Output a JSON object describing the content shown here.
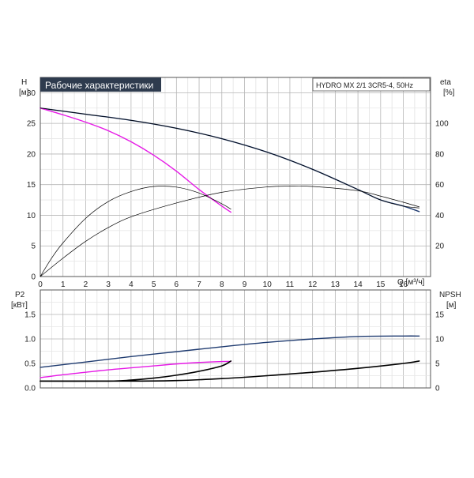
{
  "chart_data": [
    {
      "type": "line",
      "title": "Рабочие характеристики",
      "product_label": "HYDRO MX 2/1 3CR5-4, 50Hz",
      "xlabel": "Q [м³/ч]",
      "ylabel_left_name": "H",
      "ylabel_left_unit": "[м]",
      "ylabel_right_name": "eta",
      "ylabel_right_unit": "[%]",
      "xlim": [
        0,
        17.2
      ],
      "ylim_left": [
        0,
        32.5
      ],
      "ylim_right": [
        0,
        130
      ],
      "x_ticks": [
        0,
        1,
        2,
        3,
        4,
        5,
        6,
        7,
        8,
        9,
        10,
        11,
        12,
        13,
        14,
        15,
        16
      ],
      "x_tick_labels": [
        "0",
        "1",
        "2",
        "3",
        "4",
        "5",
        "6",
        "7",
        "8",
        "9",
        "10",
        "11",
        "12",
        "13",
        "14",
        "15",
        "16"
      ],
      "y_left_ticks": [
        0,
        5,
        10,
        15,
        20,
        25,
        30
      ],
      "y_left_tick_labels": [
        "0",
        "5",
        "10",
        "15",
        "20",
        "25",
        "30"
      ],
      "y_right_ticks": [
        20,
        40,
        60,
        80,
        100
      ],
      "y_right_tick_labels": [
        "20",
        "40",
        "60",
        "80",
        "100"
      ],
      "grid": true,
      "series": [
        {
          "role": "head",
          "axis": "left",
          "color": "#1f3b70",
          "x": [
            0,
            2,
            4,
            6,
            8,
            10,
            12,
            14,
            15,
            16,
            16.7
          ],
          "y": [
            27.5,
            26.5,
            25.5,
            24.2,
            22.5,
            20.3,
            17.5,
            14.2,
            12.5,
            11.5,
            10.6
          ]
        },
        {
          "role": "head",
          "axis": "left",
          "color": "#e619e6",
          "x": [
            0,
            1,
            2,
            3,
            4,
            5,
            6,
            7,
            8,
            8.4
          ],
          "y": [
            27.5,
            26.4,
            25.2,
            23.8,
            22.0,
            19.8,
            17.2,
            14.2,
            11.5,
            10.5
          ]
        },
        {
          "role": "head",
          "axis": "left",
          "color": "#000000",
          "x": [
            0,
            2,
            4,
            6,
            8,
            10,
            12,
            14,
            15,
            16,
            16.7
          ],
          "y": [
            27.5,
            26.5,
            25.5,
            24.2,
            22.5,
            20.3,
            17.5,
            14.2,
            12.5,
            11.5,
            11.2
          ]
        },
        {
          "role": "eta",
          "axis": "right",
          "color": "#000000",
          "x": [
            0,
            0.5,
            1,
            2,
            3,
            4,
            5,
            6,
            7,
            8,
            8.4
          ],
          "y": [
            0,
            12,
            22,
            38,
            49,
            55.5,
            58.8,
            58.4,
            54.5,
            47.5,
            44
          ]
        },
        {
          "role": "eta",
          "axis": "right",
          "color": "#000000",
          "x": [
            0,
            1,
            2,
            3,
            4,
            6,
            8,
            10,
            11,
            12,
            14,
            15,
            16,
            16.7
          ],
          "y": [
            0,
            12,
            23,
            32,
            39,
            48,
            55,
            58.5,
            59,
            58.8,
            56,
            52.5,
            48.5,
            45.5
          ]
        }
      ]
    },
    {
      "type": "line",
      "ylabel_left_name": "P2",
      "ylabel_left_unit": "[кВт]",
      "ylabel_right_name": "NPSH",
      "ylabel_right_unit": "[м]",
      "xlim": [
        0,
        17.2
      ],
      "ylim_left": [
        0,
        2
      ],
      "ylim_right": [
        0,
        20
      ],
      "x_ticks": [
        0,
        1,
        2,
        3,
        4,
        5,
        6,
        7,
        8,
        9,
        10,
        11,
        12,
        13,
        14,
        15,
        16
      ],
      "y_left_ticks": [
        0,
        0.5,
        1.0,
        1.5
      ],
      "y_left_tick_labels": [
        "0.0",
        "0.5",
        "1.0",
        "1.5"
      ],
      "y_right_ticks": [
        0,
        5,
        10,
        15
      ],
      "y_right_tick_labels": [
        "0",
        "5",
        "10",
        "15"
      ],
      "grid": true,
      "series": [
        {
          "role": "power",
          "axis": "left",
          "color": "#1f3b70",
          "x": [
            0,
            2,
            4,
            6,
            8,
            10,
            12,
            14,
            16,
            16.7
          ],
          "y": [
            0.42,
            0.53,
            0.64,
            0.74,
            0.84,
            0.93,
            1.0,
            1.05,
            1.06,
            1.06
          ]
        },
        {
          "role": "power",
          "axis": "left",
          "color": "#e619e6",
          "x": [
            0,
            1,
            2,
            3,
            4,
            5,
            6,
            7,
            8,
            8.4
          ],
          "y": [
            0.21,
            0.27,
            0.32,
            0.37,
            0.41,
            0.45,
            0.49,
            0.52,
            0.54,
            0.54
          ]
        },
        {
          "role": "npsh",
          "axis": "right",
          "color": "#000000",
          "x": [
            0,
            3,
            4,
            5,
            6,
            7,
            8,
            8.4
          ],
          "y": [
            1.4,
            1.4,
            1.6,
            2.0,
            2.6,
            3.4,
            4.5,
            5.5
          ]
        },
        {
          "role": "npsh",
          "axis": "right",
          "color": "#000000",
          "x": [
            0,
            4,
            6,
            8,
            10,
            12,
            14,
            16,
            16.7
          ],
          "y": [
            1.4,
            1.4,
            1.5,
            1.9,
            2.5,
            3.2,
            4.0,
            5.0,
            5.5
          ]
        }
      ]
    }
  ]
}
